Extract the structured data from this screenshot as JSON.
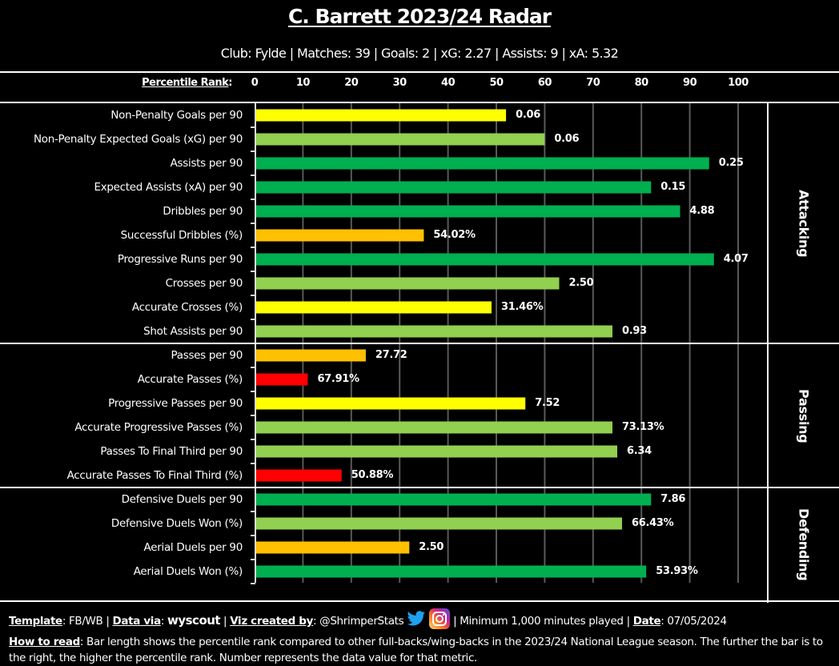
{
  "header": {
    "title": "C. Barrett 2023/24 Radar",
    "subtitle": "Club: Fylde | Matches: 39 | Goals: 2 | xG: 2.27 | Assists: 9 | xA: 5.32"
  },
  "colors": {
    "background": "#000000",
    "elite": "#00B050",
    "above_average": "#92D050",
    "average": "#FFFF00",
    "below_average": "#FFC000",
    "poor": "#FF0000",
    "gridline": "#595959"
  },
  "chart_data": {
    "type": "bar",
    "orientation": "horizontal",
    "title": "C. Barrett 2023/24 Radar",
    "xlabel": "Percentile Rank",
    "xlim": [
      0,
      100
    ],
    "x_ticks": [
      "0",
      "10",
      "20",
      "30",
      "40",
      "50",
      "60",
      "70",
      "80",
      "90",
      "100"
    ],
    "axis_label_text": "Percentile Rank",
    "axis_label_suffix": ":",
    "grid": true,
    "sections": [
      {
        "name": "Attacking",
        "metrics": [
          {
            "label": "Non-Penalty Goals per 90",
            "percentile": 52,
            "value": "0.06",
            "color": "#FFFF00"
          },
          {
            "label": "Non-Penalty Expected Goals (xG) per 90",
            "percentile": 60,
            "value": "0.06",
            "color": "#92D050"
          },
          {
            "label": "Assists per 90",
            "percentile": 94,
            "value": "0.25",
            "color": "#00B050"
          },
          {
            "label": "Expected Assists (xA) per 90",
            "percentile": 82,
            "value": "0.15",
            "color": "#00B050"
          },
          {
            "label": "Dribbles per 90",
            "percentile": 88,
            "value": "4.88",
            "color": "#00B050"
          },
          {
            "label": "Successful Dribbles (%)",
            "percentile": 35,
            "value": "54.02%",
            "color": "#FFC000"
          },
          {
            "label": "Progressive Runs per 90",
            "percentile": 95,
            "value": "4.07",
            "color": "#00B050"
          },
          {
            "label": "Crosses per 90",
            "percentile": 63,
            "value": "2.50",
            "color": "#92D050"
          },
          {
            "label": "Accurate Crosses (%)",
            "percentile": 49,
            "value": "31.46%",
            "color": "#FFFF00"
          },
          {
            "label": "Shot Assists per 90",
            "percentile": 74,
            "value": "0.93",
            "color": "#92D050"
          }
        ]
      },
      {
        "name": "Passing",
        "metrics": [
          {
            "label": "Passes per 90",
            "percentile": 23,
            "value": "27.72",
            "color": "#FFC000"
          },
          {
            "label": "Accurate Passes (%)",
            "percentile": 11,
            "value": "67.91%",
            "color": "#FF0000"
          },
          {
            "label": "Progressive Passes per 90",
            "percentile": 56,
            "value": "7.52",
            "color": "#FFFF00"
          },
          {
            "label": "Accurate Progressive Passes (%)",
            "percentile": 74,
            "value": "73.13%",
            "color": "#92D050"
          },
          {
            "label": "Passes To Final Third per 90",
            "percentile": 75,
            "value": "6.34",
            "color": "#92D050"
          },
          {
            "label": "Accurate Passes To Final Third (%)",
            "percentile": 18,
            "value": "50.88%",
            "color": "#FF0000"
          }
        ]
      },
      {
        "name": "Defending",
        "metrics": [
          {
            "label": "Defensive Duels per 90",
            "percentile": 82,
            "value": "7.86",
            "color": "#00B050"
          },
          {
            "label": "Defensive Duels Won (%)",
            "percentile": 76,
            "value": "66.43%",
            "color": "#92D050"
          },
          {
            "label": "Aerial Duels per 90",
            "percentile": 32,
            "value": "2.50",
            "color": "#FFC000"
          },
          {
            "label": "Aerial Duels Won (%)",
            "percentile": 81,
            "value": "53.93%",
            "color": "#00B050"
          }
        ]
      }
    ]
  },
  "footer": {
    "template_label": "Template",
    "template_value": ": FB/WB | ",
    "data_via_label": "Data via",
    "data_via_sep": ": ",
    "data_source_logo": "wyscout",
    "sep1": " | ",
    "viz_label": "Viz created by",
    "viz_value": ": @ShrimperStats ",
    "social_icons": [
      "twitter-icon",
      "instagram-icon"
    ],
    "min_minutes": " | Minimum 1,000 minutes played | ",
    "date_label": "Date",
    "date_value": ": 07/05/2024",
    "how_to_read_label": "How to read",
    "how_to_read_text": ": Bar length shows the percentile rank compared to other full-backs/wing-backs in the 2023/24 National League season. The further the bar is to the right, the higher the percentile rank. Number represents the data value for that metric."
  }
}
